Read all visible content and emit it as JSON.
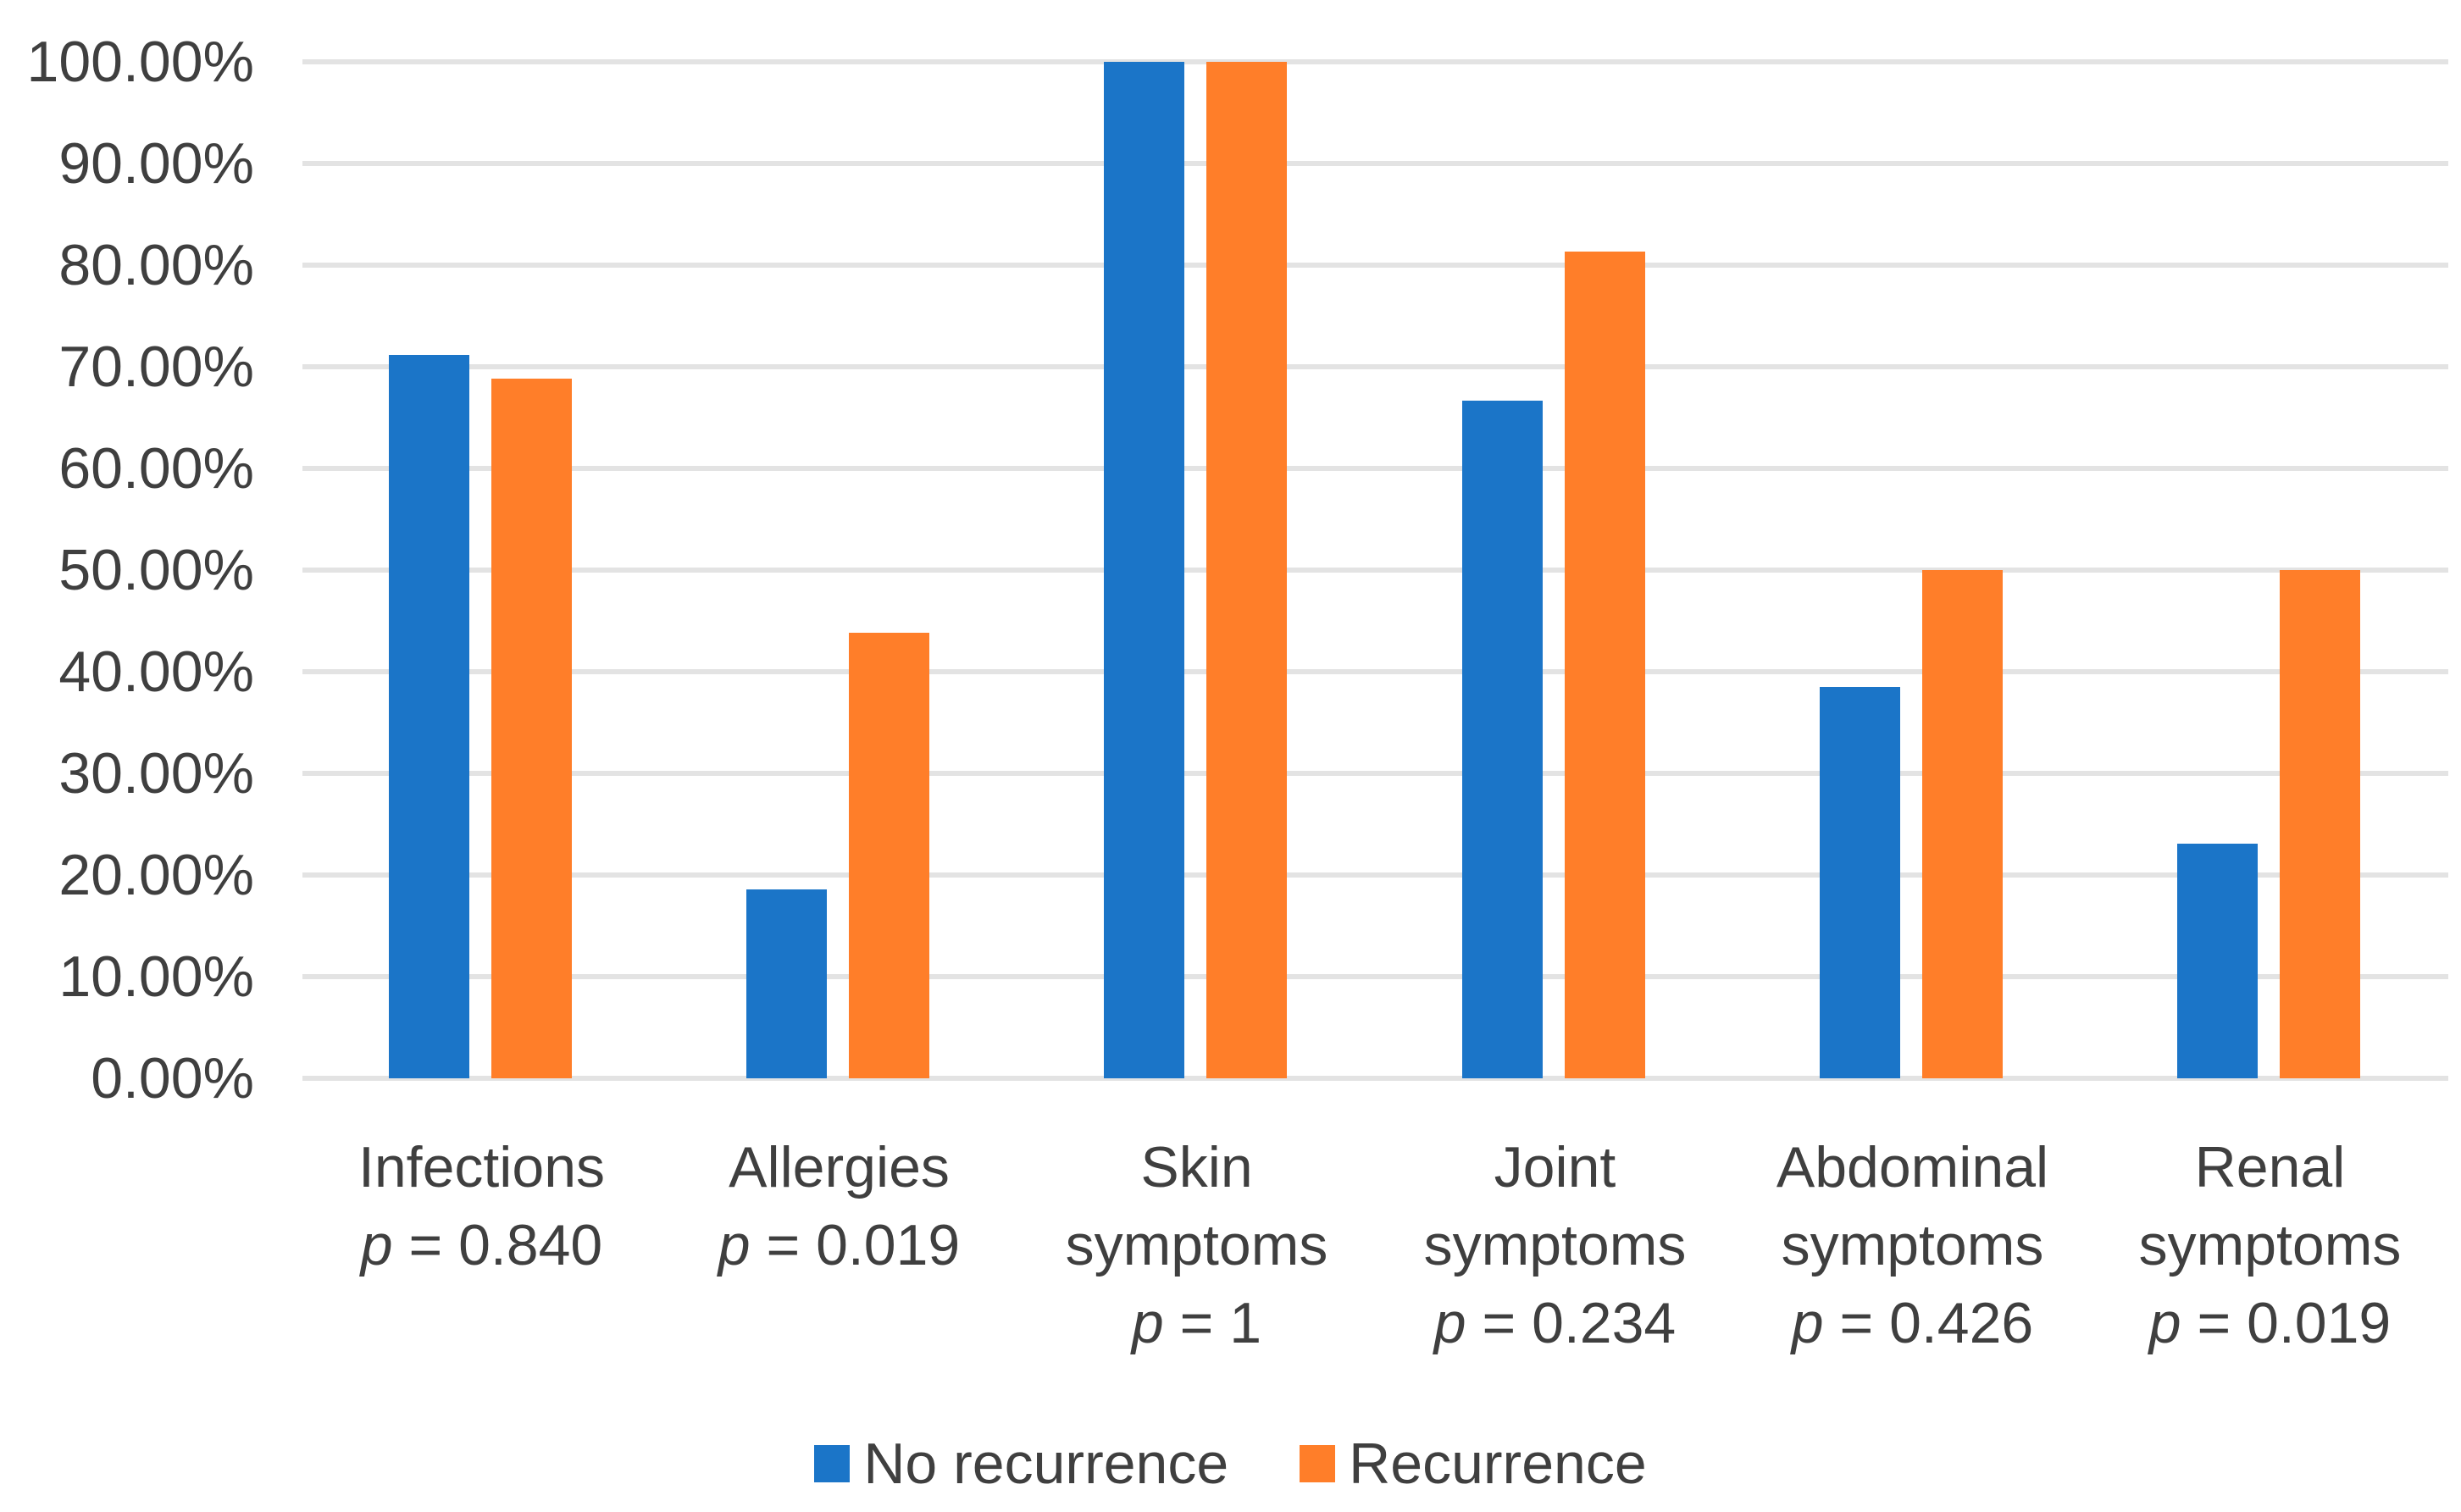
{
  "chart_data": {
    "type": "bar",
    "title": "",
    "xlabel": "",
    "ylabel": "",
    "grid": true,
    "legend_position": "bottom",
    "y_axis": {
      "min": 0,
      "max": 100,
      "step": 10,
      "unit": "%",
      "tick_labels": [
        "0.00%",
        "10.00%",
        "20.00%",
        "30.00%",
        "40.00%",
        "50.00%",
        "60.00%",
        "70.00%",
        "80.00%",
        "90.00%",
        "100.00%"
      ]
    },
    "categories": [
      {
        "lines": [
          "Infections"
        ],
        "p_text": "p = 0.840"
      },
      {
        "lines": [
          "Allergies"
        ],
        "p_text": "p = 0.019"
      },
      {
        "lines": [
          "Skin",
          "symptoms"
        ],
        "p_text": "p = 1"
      },
      {
        "lines": [
          "Joint",
          "symptoms"
        ],
        "p_text": "p = 0.234"
      },
      {
        "lines": [
          "Abdominal",
          "symptoms"
        ],
        "p_text": "p = 0.426"
      },
      {
        "lines": [
          "Renal",
          "symptoms"
        ],
        "p_text": "p = 0.019"
      }
    ],
    "series": [
      {
        "name": "No recurrence",
        "color": "#1B75C8",
        "values": [
          71.2,
          18.6,
          100,
          66.7,
          38.5,
          23.1
        ]
      },
      {
        "name": "Recurrence",
        "color": "#FF7E29",
        "values": [
          68.8,
          43.8,
          100,
          81.3,
          50,
          50
        ]
      }
    ]
  },
  "colors": {
    "text": "#3F3F3F",
    "gridline": "#E3E3E3",
    "background": "#FFFFFF"
  }
}
